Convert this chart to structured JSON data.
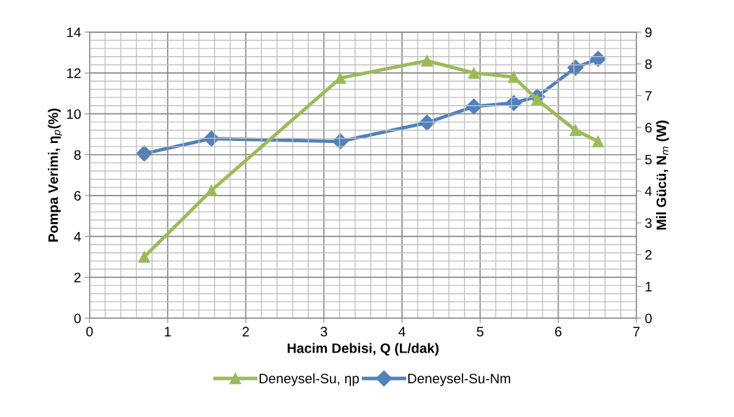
{
  "chart_data": {
    "type": "line",
    "xlabel": "Hacim Debisi, Q (L/dak)",
    "ylabel": "Pompa Verimi, η$_{p}$(%)",
    "y2label": "Mil Gücü, N$_{m}$ (W)",
    "x": [
      0.7,
      1.56,
      3.21,
      4.32,
      4.92,
      5.43,
      5.73,
      6.22,
      6.51
    ],
    "series": [
      {
        "name": "Deneysel-Su, ηp",
        "color": "#9bbb59",
        "marker": "triangle",
        "values": [
          3.0,
          6.25,
          11.75,
          12.6,
          12.0,
          11.8,
          10.7,
          9.2,
          8.65
        ]
      },
      {
        "name": "Deneysel-Su-Nm",
        "color": "#4f81bd",
        "marker": "diamond",
        "axis": "y2",
        "values": [
          5.18,
          5.65,
          5.56,
          6.15,
          6.66,
          6.77,
          6.97,
          7.88,
          8.16
        ]
      }
    ],
    "xlim": [
      0,
      7
    ],
    "xticks": [
      0,
      1,
      2,
      3,
      4,
      5,
      6,
      7
    ],
    "ylim": [
      0,
      14
    ],
    "yticks": [
      0,
      2,
      4,
      6,
      8,
      10,
      12,
      14
    ],
    "y2lim": [
      0,
      9
    ],
    "y2ticks": [
      0,
      1,
      2,
      3,
      4,
      5,
      6,
      7,
      8,
      9
    ],
    "grid": true,
    "legend": "bottom",
    "line_style": "solid"
  }
}
